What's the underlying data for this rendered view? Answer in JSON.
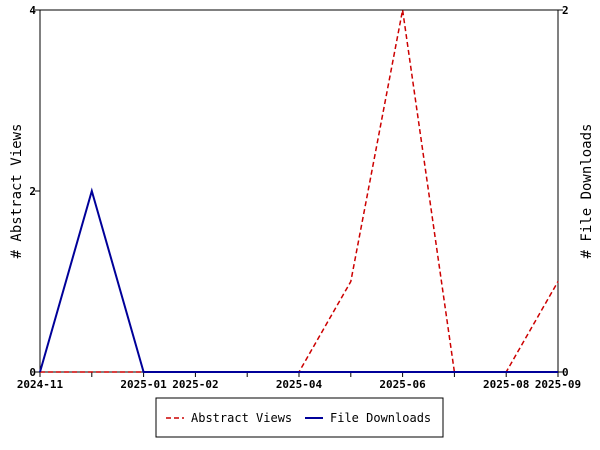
{
  "chart_data": {
    "type": "line",
    "title": "",
    "x": [
      "2024-11",
      "2024-12",
      "2025-01",
      "2025-02",
      "2025-03",
      "2025-04",
      "2025-05",
      "2025-06",
      "2025-07",
      "2025-08",
      "2025-09"
    ],
    "x_tick_labels": [
      "2024-11",
      "2025-01",
      "2025-02",
      "2025-04",
      "2025-06",
      "2025-08",
      "2025-09"
    ],
    "ylabel_left": "# Abstract Views",
    "ylabel_right": "# File Downloads",
    "ylim_left": [
      0,
      4
    ],
    "ylim_right": [
      0,
      2
    ],
    "yticks_left": [
      "0",
      "2",
      "4"
    ],
    "yticks_right": [
      "0",
      "2"
    ],
    "grid": false,
    "legend_position": "bottom",
    "series": [
      {
        "name": "Abstract Views",
        "axis": "left",
        "color": "#cc0000",
        "style": "dashed",
        "values": [
          0,
          0,
          0,
          0,
          0,
          0,
          1,
          4,
          0,
          0,
          1
        ]
      },
      {
        "name": "File Downloads",
        "axis": "right",
        "color": "#000099",
        "style": "solid",
        "values": [
          0,
          1,
          0,
          0,
          0,
          0,
          0,
          0,
          0,
          0,
          0
        ]
      }
    ]
  }
}
